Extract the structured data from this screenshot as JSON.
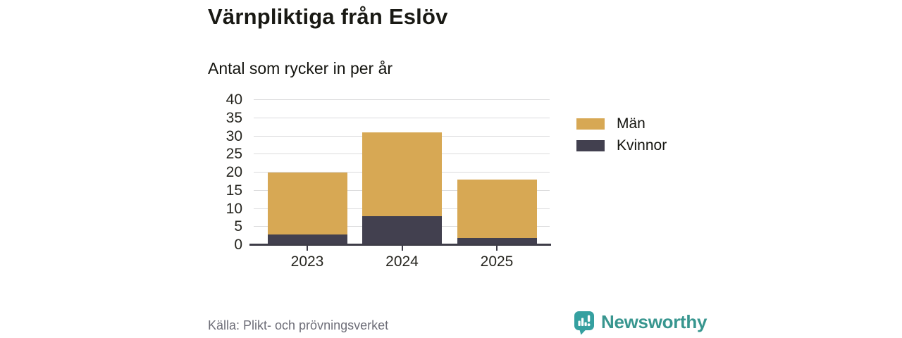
{
  "header": {
    "title": "Värnpliktiga från Eslöv",
    "subtitle": "Antal som rycker in per år"
  },
  "chart_data": {
    "type": "bar",
    "stacked": true,
    "title": "Värnpliktiga från Eslöv",
    "subtitle": "Antal som rycker in per år",
    "categories": [
      "2023",
      "2024",
      "2025"
    ],
    "series": [
      {
        "name": "Män",
        "color": "#d7a854",
        "values": [
          17,
          23,
          16
        ]
      },
      {
        "name": "Kvinnor",
        "color": "#42404f",
        "values": [
          3,
          8,
          2
        ]
      }
    ],
    "stack_bottom_to_top": [
      "Kvinnor",
      "Män"
    ],
    "stacked_totals": [
      20,
      31,
      18
    ],
    "xlabel": "",
    "ylabel": "",
    "ylim": [
      0,
      40
    ],
    "ytick_step": 5,
    "grid": true,
    "legend_position": "right"
  },
  "footer": {
    "source": "Källa: Plikt- och prövningsverket",
    "brand_name": "Newsworthy"
  },
  "colors": {
    "men": "#d7a854",
    "women": "#42404f",
    "brand_teal": "#38968f",
    "brand_icon_teal": "#35a0a0",
    "gridline": "#dcdcdd",
    "axis": "#3e3d48",
    "source_text": "#6e6e78",
    "text": "#14140f"
  }
}
